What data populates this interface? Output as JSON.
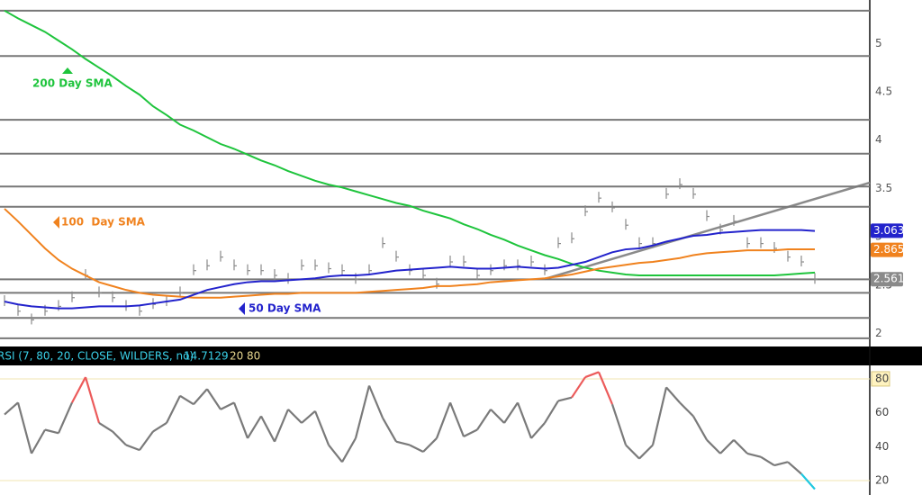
{
  "chart_data": [
    {
      "type": "price",
      "values": [
        2.33,
        2.23,
        2.14,
        2.23,
        2.28,
        2.37,
        2.6,
        2.42,
        2.37,
        2.28,
        2.23,
        2.3,
        2.33,
        2.42,
        2.65,
        2.7,
        2.79,
        2.7,
        2.65,
        2.65,
        2.6,
        2.56,
        2.7,
        2.7,
        2.67,
        2.65,
        2.56,
        2.65,
        2.93,
        2.79,
        2.65,
        2.6,
        2.51,
        2.74,
        2.74,
        2.6,
        2.65,
        2.7,
        2.7,
        2.74,
        2.65,
        2.93,
        2.98,
        3.26,
        3.4,
        3.3,
        3.12,
        2.93,
        2.93,
        3.44,
        3.54,
        3.44,
        3.21,
        3.07,
        3.16,
        2.93,
        2.93,
        2.88,
        2.79,
        2.74,
        2.56
      ],
      "color": "#8a8a8a",
      "series": [
        {
          "name": "200 Day SMA",
          "color": "#1ec43c",
          "values": [
            5.34,
            5.26,
            5.19,
            5.12,
            5.03,
            4.94,
            4.84,
            4.75,
            4.66,
            4.56,
            4.47,
            4.35,
            4.26,
            4.16,
            4.1,
            4.03,
            3.96,
            3.91,
            3.85,
            3.79,
            3.74,
            3.68,
            3.63,
            3.58,
            3.54,
            3.51,
            3.47,
            3.43,
            3.39,
            3.35,
            3.32,
            3.27,
            3.23,
            3.19,
            3.13,
            3.08,
            3.02,
            2.97,
            2.91,
            2.86,
            2.81,
            2.77,
            2.72,
            2.68,
            2.65,
            2.63,
            2.61,
            2.6,
            2.6,
            2.6,
            2.6,
            2.6,
            2.6,
            2.6,
            2.6,
            2.6,
            2.6,
            2.6,
            2.61,
            2.62,
            2.63
          ]
        },
        {
          "name": "100  Day SMA",
          "color": "#f0821e",
          "values": [
            3.29,
            3.16,
            3.02,
            2.88,
            2.76,
            2.67,
            2.6,
            2.53,
            2.49,
            2.45,
            2.42,
            2.4,
            2.39,
            2.38,
            2.37,
            2.37,
            2.37,
            2.38,
            2.39,
            2.4,
            2.41,
            2.41,
            2.42,
            2.42,
            2.42,
            2.42,
            2.42,
            2.43,
            2.44,
            2.45,
            2.46,
            2.47,
            2.49,
            2.49,
            2.5,
            2.51,
            2.53,
            2.54,
            2.55,
            2.56,
            2.57,
            2.59,
            2.61,
            2.64,
            2.67,
            2.69,
            2.71,
            2.73,
            2.74,
            2.76,
            2.78,
            2.81,
            2.83,
            2.84,
            2.85,
            2.86,
            2.86,
            2.86,
            2.87,
            2.87,
            2.87
          ]
        },
        {
          "name": "50 Day SMA",
          "color": "#2323cc",
          "values": [
            2.33,
            2.3,
            2.28,
            2.27,
            2.26,
            2.26,
            2.27,
            2.28,
            2.28,
            2.28,
            2.29,
            2.31,
            2.33,
            2.35,
            2.4,
            2.45,
            2.48,
            2.51,
            2.53,
            2.54,
            2.54,
            2.55,
            2.56,
            2.57,
            2.59,
            2.6,
            2.6,
            2.61,
            2.63,
            2.65,
            2.66,
            2.67,
            2.68,
            2.69,
            2.68,
            2.67,
            2.67,
            2.68,
            2.69,
            2.68,
            2.67,
            2.68,
            2.71,
            2.74,
            2.79,
            2.84,
            2.87,
            2.88,
            2.91,
            2.95,
            2.98,
            3.01,
            3.02,
            3.04,
            3.05,
            3.06,
            3.07,
            3.07,
            3.07,
            3.07,
            3.06
          ]
        }
      ],
      "levels": [
        5.34,
        4.87,
        4.21,
        3.86,
        3.52,
        3.31,
        2.56,
        2.42,
        2.16,
        1.95
      ],
      "price_labels": [
        {
          "value": 3.063,
          "color": "#2323cc"
        },
        {
          "value": 2.865,
          "color": "#f0821e"
        },
        {
          "value": 2.561,
          "color": "#8a8a8a"
        }
      ],
      "ylim": [
        1.93,
        5.45
      ],
      "yticks": [
        2,
        2.5,
        3,
        3.5,
        4,
        4.5,
        5
      ]
    },
    {
      "type": "rsi",
      "title": "RSI (7, 80, 20, CLOSE, WILDERS, no)",
      "last_value": 14.7129,
      "oversold": 20,
      "overbought": 80,
      "values": [
        59,
        66,
        36,
        50,
        48,
        66,
        81,
        54,
        49,
        41,
        38,
        49,
        54,
        70,
        65,
        74,
        62,
        66,
        45,
        58,
        43,
        62,
        54,
        61,
        41,
        31,
        45,
        76,
        57,
        43,
        41,
        37,
        45,
        66,
        46,
        50,
        62,
        54,
        66,
        45,
        54,
        67,
        69,
        81,
        84,
        65,
        41,
        33,
        41,
        75,
        66,
        58,
        44,
        36,
        44,
        36,
        34,
        29,
        31,
        24,
        15
      ],
      "color": "#7a7a7a",
      "overbought_color": "#ec5b5b",
      "oversold_color": "#1ec8e0",
      "ylim": [
        12.6,
        87.4
      ],
      "yticks": [
        20,
        40,
        60,
        80
      ]
    }
  ]
}
